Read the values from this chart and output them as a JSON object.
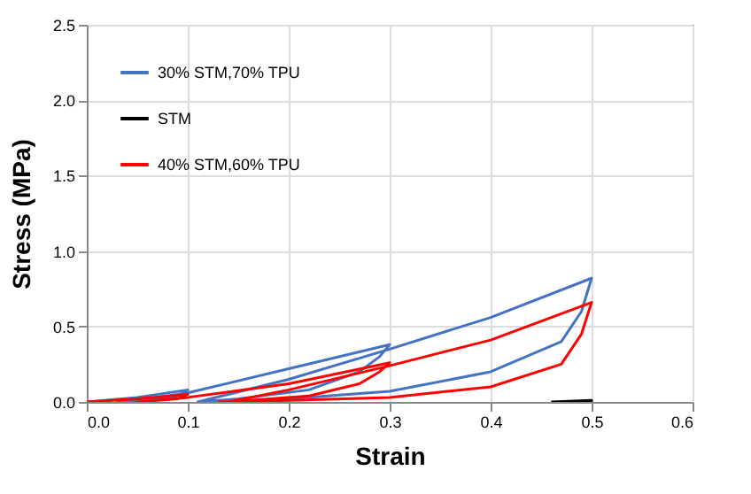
{
  "chart_data": {
    "type": "line",
    "xlabel": "Strain",
    "ylabel": "Stress (MPa)",
    "xlim": [
      0,
      0.6
    ],
    "xticks": [
      {
        "value": 0,
        "label": "0.0"
      },
      0.1,
      0.2,
      0.3,
      0.4,
      0.5,
      0.6
    ],
    "ylim": [
      0,
      2.5
    ],
    "yticks": [
      {
        "value": 0,
        "label": "0.0"
      },
      0.5,
      {
        "value": 1,
        "label": "1.0"
      },
      1.5,
      {
        "value": 2,
        "label": "2.0"
      },
      2.5
    ],
    "grid": true,
    "legend": "top left",
    "series": [
      {
        "name": "30% STM,70% TPU",
        "color": "#4472c4",
        "x": [
          0,
          0.05,
          0.1,
          0.09,
          0.06,
          0.03,
          0.06,
          0.1,
          0.2,
          0.3,
          0.29,
          0.27,
          0.22,
          0.15,
          0.11,
          0.2,
          0.3,
          0.4,
          0.5,
          0.49,
          0.47,
          0.4,
          0.3,
          0.2,
          0.15
        ],
        "values": [
          0,
          0.03,
          0.08,
          0.04,
          0.01,
          0,
          0.02,
          0.06,
          0.22,
          0.38,
          0.3,
          0.2,
          0.08,
          0.02,
          0,
          0.15,
          0.35,
          0.56,
          0.82,
          0.6,
          0.4,
          0.2,
          0.07,
          0.02,
          0
        ]
      },
      {
        "name": "STM",
        "color": "#000000",
        "x": [
          0.46,
          0.5,
          0.5
        ],
        "values": [
          0,
          0.01,
          0
        ]
      },
      {
        "name": "40% STM,60% TPU",
        "color": "#ff0000",
        "x": [
          0,
          0.05,
          0.1,
          0.09,
          0.05,
          0.1,
          0.2,
          0.3,
          0.29,
          0.27,
          0.22,
          0.14,
          0.2,
          0.3,
          0.4,
          0.5,
          0.49,
          0.47,
          0.4,
          0.3,
          0.2,
          0.13
        ],
        "values": [
          0,
          0.02,
          0.05,
          0.02,
          0,
          0.03,
          0.12,
          0.26,
          0.2,
          0.12,
          0.04,
          0,
          0.08,
          0.24,
          0.41,
          0.66,
          0.45,
          0.25,
          0.1,
          0.03,
          0.01,
          0
        ]
      }
    ]
  }
}
